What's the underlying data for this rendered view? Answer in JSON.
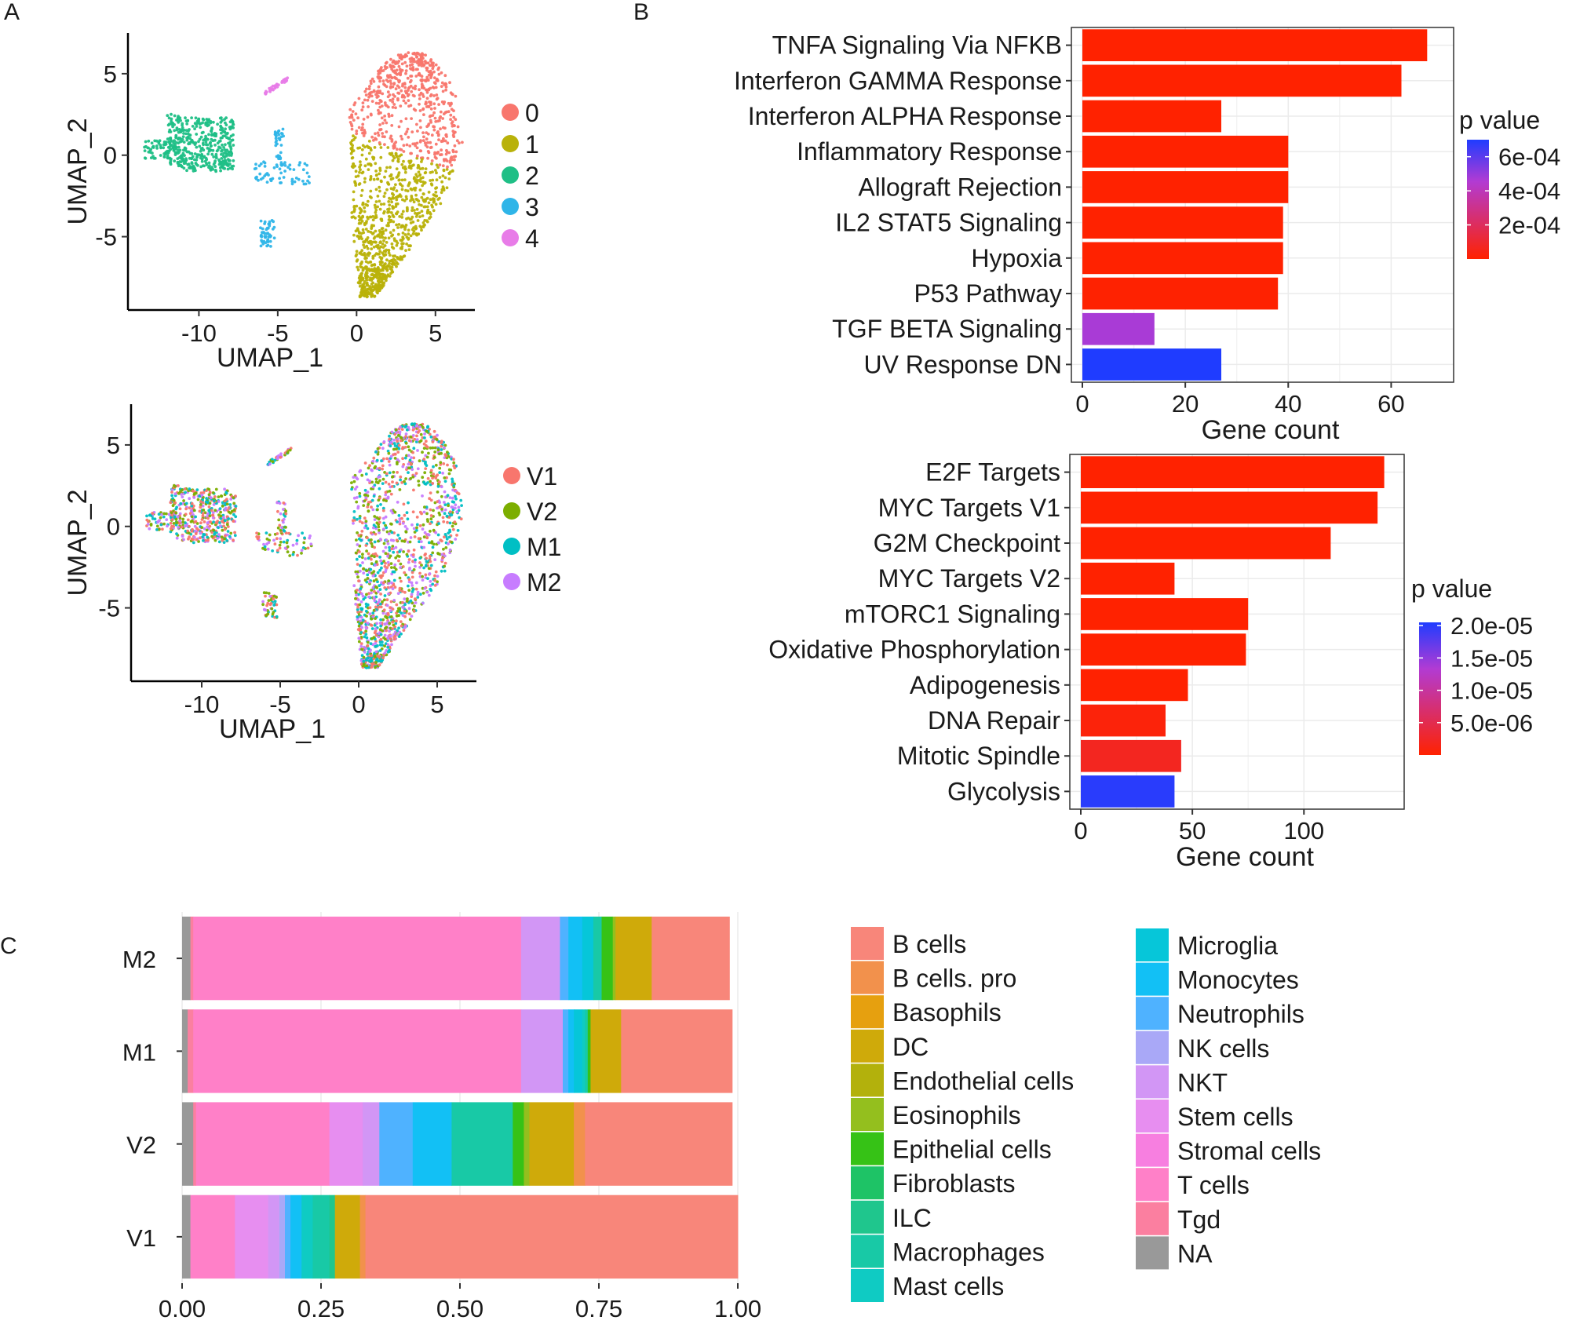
{
  "panel_labels": {
    "a": "A",
    "b": "B",
    "c": "C"
  },
  "colors": {
    "cluster_0": "#f8766d",
    "cluster_1": "#b9b20a",
    "cluster_2": "#1fbf86",
    "cluster_3": "#2fb5e8",
    "cluster_4": "#e87ce8",
    "V1": "#f8766d",
    "V2": "#7cae00",
    "M1": "#00bfc4",
    "M2": "#c77cff",
    "p_high": "#ff2200",
    "p_mid": "#b23bd3",
    "p_low": "#1f3cff"
  },
  "chart_data": [
    {
      "id": "umap_clusters",
      "type": "scatter",
      "title": "",
      "xlabel": "UMAP_1",
      "ylabel": "UMAP_2",
      "xlim": [
        -14.5,
        7.5
      ],
      "ylim": [
        -9.5,
        7.5
      ],
      "xticks": [
        -10,
        -5,
        0,
        5
      ],
      "xtick_labels": [
        "-10",
        "-5",
        "0",
        "5"
      ],
      "yticks": [
        5,
        0,
        -5
      ],
      "ytick_labels": [
        "5",
        "0",
        "-5"
      ],
      "legend": [
        "0",
        "1",
        "2",
        "3",
        "4"
      ],
      "legend_position": "right",
      "series": [
        {
          "name": "0",
          "region": "upper half of large island",
          "center": [
            3.3,
            2.5
          ]
        },
        {
          "name": "1",
          "region": "lower half of large island",
          "center": [
            2.0,
            -3.5
          ]
        },
        {
          "name": "2",
          "region": "left island",
          "center": [
            -10.0,
            0.8
          ]
        },
        {
          "name": "3",
          "region": "small satellites",
          "center": [
            -5.5,
            -1.0
          ]
        },
        {
          "name": "4",
          "region": "tiny island",
          "center": [
            -5.0,
            4.3
          ]
        }
      ]
    },
    {
      "id": "umap_samples",
      "type": "scatter",
      "title": "",
      "xlabel": "UMAP_1",
      "ylabel": "UMAP_2",
      "xlim": [
        -14.5,
        7.5
      ],
      "ylim": [
        -9.5,
        7.5
      ],
      "xticks": [
        -10,
        -5,
        0,
        5
      ],
      "xtick_labels": [
        "-10",
        "-5",
        "0",
        "5"
      ],
      "yticks": [
        5,
        0,
        -5
      ],
      "ytick_labels": [
        "5",
        "0",
        "-5"
      ],
      "legend": [
        "V1",
        "V2",
        "M1",
        "M2"
      ],
      "legend_position": "right",
      "series": [
        {
          "name": "V1",
          "region": "mixed across all islands"
        },
        {
          "name": "V2",
          "region": "mixed across all islands"
        },
        {
          "name": "M1",
          "region": "mixed across all islands"
        },
        {
          "name": "M2",
          "region": "mixed across all islands"
        }
      ]
    },
    {
      "id": "hallmark_top",
      "type": "bar",
      "orientation": "horizontal",
      "xlabel": "Gene count",
      "xlim": [
        0,
        70
      ],
      "xticks": [
        0,
        20,
        40,
        60
      ],
      "xtick_labels": [
        "0",
        "20",
        "40",
        "60"
      ],
      "categories": [
        "TNFA Signaling Via NFKB",
        "Interferon GAMMA Response",
        "Interferon ALPHA Response",
        "Inflammatory Response",
        "Allograft Rejection",
        "IL2 STAT5 Signaling",
        "Hypoxia",
        "P53 Pathway",
        "TGF BETA Signaling",
        "UV Response DN"
      ],
      "values": [
        67,
        62,
        27,
        40,
        40,
        39,
        39,
        38,
        14,
        27
      ],
      "p_values": [
        1e-09,
        5e-09,
        3e-07,
        1e-09,
        1e-09,
        2e-08,
        2e-08,
        3e-06,
        0.00047,
        0.0007
      ],
      "legend_title": "p value",
      "p_range": [
        0,
        0.0007
      ],
      "legend_ticks": [
        0.0006,
        0.0004,
        0.0002
      ],
      "legend_labels": [
        "6e-04",
        "4e-04",
        "2e-04"
      ]
    },
    {
      "id": "hallmark_bottom",
      "type": "bar",
      "orientation": "horizontal",
      "xlabel": "Gene count",
      "xlim": [
        0,
        140
      ],
      "xticks": [
        0,
        50,
        100
      ],
      "xtick_labels": [
        "0",
        "50",
        "100"
      ],
      "categories": [
        "E2F Targets",
        "MYC Targets V1",
        "G2M Checkpoint",
        "MYC Targets V2",
        "mTORC1 Signaling",
        "Oxidative Phosphorylation",
        "Adipogenesis",
        "DNA Repair",
        "Mitotic Spindle",
        "Glycolysis"
      ],
      "values": [
        136,
        133,
        112,
        42,
        75,
        74,
        48,
        38,
        45,
        42
      ],
      "p_values": [
        1e-20,
        1e-20,
        1e-15,
        1e-12,
        1e-10,
        1e-10,
        5e-08,
        6e-07,
        2e-06,
        2e-05
      ],
      "legend_title": "p value",
      "p_range": [
        0,
        2.05e-05
      ],
      "legend_ticks": [
        2e-05,
        1.5e-05,
        1e-05,
        5e-06
      ],
      "legend_labels": [
        "2.0e-05",
        "1.5e-05",
        "1.0e-05",
        "5.0e-06"
      ]
    },
    {
      "id": "cell_composition",
      "type": "bar",
      "orientation": "horizontal",
      "stacked": true,
      "xlim": [
        0,
        1
      ],
      "xticks": [
        0,
        0.25,
        0.5,
        0.75,
        1
      ],
      "xtick_labels": [
        "0.00",
        "0.25",
        "0.50",
        "0.75",
        "1.00"
      ],
      "categories": [
        "M2",
        "M1",
        "V2",
        "V1"
      ],
      "series": [
        {
          "name": "NA",
          "color": "#999999",
          "values": [
            0.015,
            0.01,
            0.02,
            0.015
          ]
        },
        {
          "name": "Tgd",
          "color": "#fb7fa0",
          "values": [
            0.005,
            0.01,
            0.005,
            0.0
          ]
        },
        {
          "name": "T cells",
          "color": "#ff80c8",
          "values": [
            0.59,
            0.59,
            0.24,
            0.08
          ]
        },
        {
          "name": "Stromal cells",
          "color": "#f77fe0",
          "values": [
            0.0,
            0.0,
            0.0,
            0.0
          ]
        },
        {
          "name": "Stem cells",
          "color": "#e78ef0",
          "values": [
            0.0,
            0.0,
            0.06,
            0.06
          ]
        },
        {
          "name": "NKT",
          "color": "#d296f5",
          "values": [
            0.07,
            0.075,
            0.03,
            0.02
          ]
        },
        {
          "name": "NK cells",
          "color": "#a9a8f7",
          "values": [
            0.0,
            0.0,
            0.0,
            0.01
          ]
        },
        {
          "name": "Neutrophils",
          "color": "#4fb2ff",
          "values": [
            0.015,
            0.01,
            0.06,
            0.01
          ]
        },
        {
          "name": "Monocytes",
          "color": "#12c0f5",
          "values": [
            0.025,
            0.01,
            0.07,
            0.02
          ]
        },
        {
          "name": "Microglia",
          "color": "#06c6d9",
          "values": [
            0.02,
            0.015,
            0.0,
            0.0
          ]
        },
        {
          "name": "Mast cells",
          "color": "#0fcbc3",
          "values": [
            0.0,
            0.005,
            0.0,
            0.02
          ]
        },
        {
          "name": "Macrophages",
          "color": "#18c9a6",
          "values": [
            0.015,
            0.005,
            0.11,
            0.03
          ]
        },
        {
          "name": "ILC",
          "color": "#1fc68d",
          "values": [
            0.0,
            0.0,
            0.0,
            0.01
          ]
        },
        {
          "name": "Fibroblasts",
          "color": "#1ec366",
          "values": [
            0.0,
            0.0,
            0.0,
            0.0
          ]
        },
        {
          "name": "Epithelial cells",
          "color": "#36c216",
          "values": [
            0.02,
            0.005,
            0.02,
            0.0
          ]
        },
        {
          "name": "Eosinophils",
          "color": "#94bf1e",
          "values": [
            0.005,
            0.0,
            0.01,
            0.0
          ]
        },
        {
          "name": "Endothelial cells",
          "color": "#b3b10c",
          "values": [
            0.0,
            0.0,
            0.0,
            0.0
          ]
        },
        {
          "name": "DC",
          "color": "#cfaa0a",
          "values": [
            0.065,
            0.055,
            0.08,
            0.045
          ]
        },
        {
          "name": "Basophils",
          "color": "#e6a00f",
          "values": [
            0.0,
            0.0,
            0.0,
            0.0
          ]
        },
        {
          "name": "B cells. pro",
          "color": "#f2914c",
          "values": [
            0.0,
            0.0,
            0.02,
            0.01
          ]
        },
        {
          "name": "B cells",
          "color": "#f8867a",
          "values": [
            0.14,
            0.2,
            0.265,
            0.67
          ]
        }
      ],
      "legend": [
        "B cells",
        "B cells. pro",
        "Basophils",
        "DC",
        "Endothelial cells",
        "Eosinophils",
        "Epithelial cells",
        "Fibroblasts",
        "ILC",
        "Macrophages",
        "Mast cells",
        "Microglia",
        "Monocytes",
        "Neutrophils",
        "NK cells",
        "NKT",
        "Stem cells",
        "Stromal cells",
        "T cells",
        "Tgd",
        "NA"
      ]
    }
  ]
}
